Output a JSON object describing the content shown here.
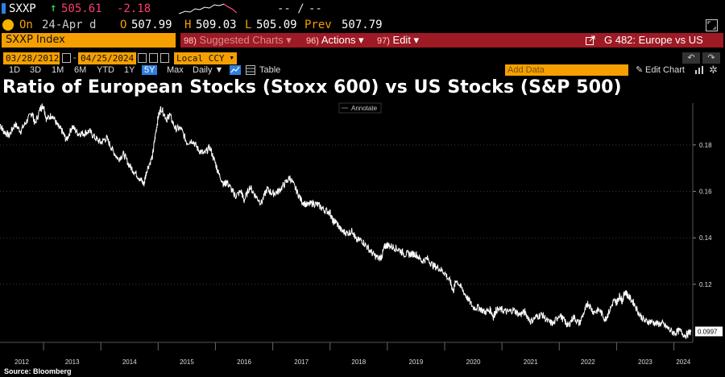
{
  "header": {
    "ticker": "SXXP",
    "up_arrow": "↑",
    "last_price": "505.61",
    "change": "-2.18",
    "dash_1": "-- /",
    "dash_2": "--",
    "on_label": "On",
    "date": "24-Apr d",
    "open_label": "O",
    "open": "507.99",
    "high_label": "H",
    "high": "509.03",
    "low_label": "L",
    "low": "505.09",
    "prev_label": "Prev",
    "prev": "507.79"
  },
  "command_bar": {
    "index_name": "SXXP Index",
    "suggested_num": "98)",
    "suggested_label": "Suggested Charts ▾",
    "actions_num": "96)",
    "actions_label": "Actions ▾",
    "edit_num": "97)",
    "edit_label": "Edit ▾",
    "chart_name": "G 482: Europe vs US"
  },
  "date_range": {
    "start": "03/28/2012",
    "separator": "-",
    "end": "04/25/2024",
    "currency": "Local CCY"
  },
  "periods": {
    "items": [
      "1D",
      "3D",
      "1M",
      "6M",
      "YTD",
      "1Y",
      "5Y",
      "Max"
    ],
    "active": "5Y",
    "frequency": "Daily ▼",
    "table_label": "Table",
    "add_data_placeholder": "Add Data",
    "edit_chart_label": "Edit Chart"
  },
  "icons": {
    "expand": "expand-icon",
    "share": "share-icon",
    "undo": "undo-icon",
    "redo": "redo-icon",
    "pencil": "pencil-icon",
    "settings": "gear-icon"
  },
  "colors": {
    "orange": "#f5a000",
    "red_bar": "#9e1a24",
    "accent_blue": "#2f7fe0",
    "down_red": "#ff3d6e",
    "up_green": "#2ecc40"
  },
  "annotate_label": "Annotate",
  "source": "Source: Bloomberg",
  "chart_data": {
    "type": "line",
    "title": "Ratio of European Stocks (Stoxx 600) vs US Stocks (S&P 500)",
    "xlabel": "",
    "ylabel": "",
    "x_ticks": [
      "2012",
      "2013",
      "2014",
      "2015",
      "2016",
      "2017",
      "2018",
      "2019",
      "2020",
      "2021",
      "2022",
      "2023",
      "2024"
    ],
    "y_ticks": [
      0.12,
      0.14,
      0.16,
      0.18
    ],
    "ylim": [
      0.095,
      0.198
    ],
    "xlim": [
      2012.24,
      2024.33
    ],
    "last_value_label": "0.0997",
    "grid": "horizontal dotted",
    "series": [
      {
        "values": [
          [
            2012.24,
            0.189
          ],
          [
            2012.3,
            0.186
          ],
          [
            2012.4,
            0.184
          ],
          [
            2012.5,
            0.189
          ],
          [
            2012.6,
            0.186
          ],
          [
            2012.7,
            0.19
          ],
          [
            2012.8,
            0.194
          ],
          [
            2012.85,
            0.189
          ],
          [
            2012.95,
            0.196
          ],
          [
            2013.0,
            0.197
          ],
          [
            2013.05,
            0.191
          ],
          [
            2013.15,
            0.193
          ],
          [
            2013.25,
            0.188
          ],
          [
            2013.32,
            0.186
          ],
          [
            2013.4,
            0.182
          ],
          [
            2013.5,
            0.188
          ],
          [
            2013.6,
            0.185
          ],
          [
            2013.7,
            0.185
          ],
          [
            2013.8,
            0.186
          ],
          [
            2013.9,
            0.183
          ],
          [
            2014.0,
            0.181
          ],
          [
            2014.1,
            0.183
          ],
          [
            2014.2,
            0.178
          ],
          [
            2014.3,
            0.174
          ],
          [
            2014.4,
            0.176
          ],
          [
            2014.5,
            0.171
          ],
          [
            2014.6,
            0.168
          ],
          [
            2014.7,
            0.165
          ],
          [
            2014.75,
            0.163
          ],
          [
            2014.8,
            0.169
          ],
          [
            2014.9,
            0.175
          ],
          [
            2014.95,
            0.184
          ],
          [
            2015.0,
            0.192
          ],
          [
            2015.05,
            0.196
          ],
          [
            2015.15,
            0.191
          ],
          [
            2015.2,
            0.193
          ],
          [
            2015.3,
            0.187
          ],
          [
            2015.4,
            0.187
          ],
          [
            2015.5,
            0.181
          ],
          [
            2015.6,
            0.182
          ],
          [
            2015.7,
            0.178
          ],
          [
            2015.8,
            0.176
          ],
          [
            2015.9,
            0.179
          ],
          [
            2016.0,
            0.172
          ],
          [
            2016.05,
            0.168
          ],
          [
            2016.15,
            0.163
          ],
          [
            2016.2,
            0.164
          ],
          [
            2016.3,
            0.16
          ],
          [
            2016.35,
            0.158
          ],
          [
            2016.45,
            0.16
          ],
          [
            2016.5,
            0.156
          ],
          [
            2016.6,
            0.162
          ],
          [
            2016.7,
            0.158
          ],
          [
            2016.8,
            0.155
          ],
          [
            2016.9,
            0.161
          ],
          [
            2017.0,
            0.159
          ],
          [
            2017.1,
            0.16
          ],
          [
            2017.2,
            0.163
          ],
          [
            2017.3,
            0.166
          ],
          [
            2017.4,
            0.161
          ],
          [
            2017.5,
            0.156
          ],
          [
            2017.6,
            0.154
          ],
          [
            2017.7,
            0.155
          ],
          [
            2017.8,
            0.154
          ],
          [
            2017.9,
            0.152
          ],
          [
            2018.0,
            0.151
          ],
          [
            2018.05,
            0.147
          ],
          [
            2018.1,
            0.147
          ],
          [
            2018.2,
            0.143
          ],
          [
            2018.3,
            0.142
          ],
          [
            2018.4,
            0.143
          ],
          [
            2018.45,
            0.139
          ],
          [
            2018.55,
            0.139
          ],
          [
            2018.65,
            0.136
          ],
          [
            2018.75,
            0.133
          ],
          [
            2018.85,
            0.131
          ],
          [
            2018.9,
            0.132
          ],
          [
            2018.95,
            0.136
          ],
          [
            2019.0,
            0.137
          ],
          [
            2019.1,
            0.136
          ],
          [
            2019.2,
            0.135
          ],
          [
            2019.3,
            0.133
          ],
          [
            2019.4,
            0.133
          ],
          [
            2019.5,
            0.133
          ],
          [
            2019.6,
            0.13
          ],
          [
            2019.7,
            0.131
          ],
          [
            2019.8,
            0.128
          ],
          [
            2019.9,
            0.127
          ],
          [
            2020.0,
            0.125
          ],
          [
            2020.1,
            0.121
          ],
          [
            2020.15,
            0.117
          ],
          [
            2020.2,
            0.122
          ],
          [
            2020.3,
            0.118
          ],
          [
            2020.4,
            0.114
          ],
          [
            2020.5,
            0.11
          ],
          [
            2020.6,
            0.11
          ],
          [
            2020.7,
            0.108
          ],
          [
            2020.8,
            0.109
          ],
          [
            2020.85,
            0.106
          ],
          [
            2020.9,
            0.109
          ],
          [
            2021.0,
            0.109
          ],
          [
            2021.1,
            0.108
          ],
          [
            2021.2,
            0.109
          ],
          [
            2021.3,
            0.107
          ],
          [
            2021.4,
            0.108
          ],
          [
            2021.5,
            0.104
          ],
          [
            2021.6,
            0.106
          ],
          [
            2021.7,
            0.107
          ],
          [
            2021.8,
            0.104
          ],
          [
            2021.9,
            0.103
          ],
          [
            2022.0,
            0.107
          ],
          [
            2022.1,
            0.104
          ],
          [
            2022.15,
            0.102
          ],
          [
            2022.25,
            0.106
          ],
          [
            2022.35,
            0.103
          ],
          [
            2022.45,
            0.109
          ],
          [
            2022.5,
            0.112
          ],
          [
            2022.6,
            0.108
          ],
          [
            2022.7,
            0.109
          ],
          [
            2022.8,
            0.105
          ],
          [
            2022.85,
            0.107
          ],
          [
            2022.95,
            0.113
          ],
          [
            2023.0,
            0.112
          ],
          [
            2023.05,
            0.115
          ],
          [
            2023.1,
            0.113
          ],
          [
            2023.15,
            0.117
          ],
          [
            2023.2,
            0.115
          ],
          [
            2023.3,
            0.112
          ],
          [
            2023.4,
            0.107
          ],
          [
            2023.5,
            0.104
          ],
          [
            2023.6,
            0.104
          ],
          [
            2023.7,
            0.103
          ],
          [
            2023.8,
            0.103
          ],
          [
            2023.9,
            0.101
          ],
          [
            2024.0,
            0.099
          ],
          [
            2024.1,
            0.1
          ],
          [
            2024.2,
            0.098
          ],
          [
            2024.3,
            0.0997
          ]
        ]
      }
    ]
  }
}
